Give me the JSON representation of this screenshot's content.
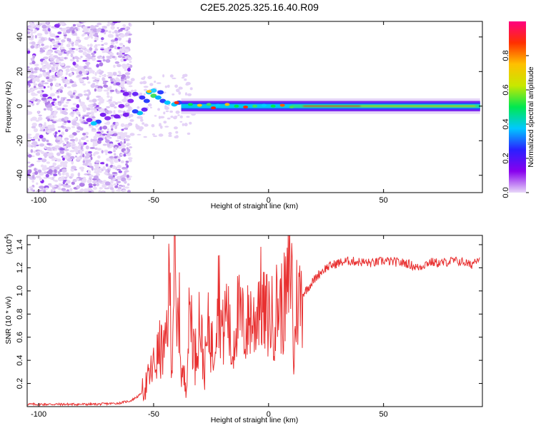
{
  "title": "C2E5.2025.325.16.40.R09",
  "chart_data": [
    {
      "type": "heatmap",
      "name": "spectrogram",
      "title": "C2E5.2025.325.16.40.R09",
      "xlabel": "Height of straight line (km)",
      "ylabel": "Frequency (Hz)",
      "xlim": [
        -105,
        93
      ],
      "ylim": [
        -50,
        49
      ],
      "xticks": [
        -100,
        -50,
        0,
        50
      ],
      "yticks": [
        -40,
        -20,
        0,
        20,
        40
      ],
      "colorbar": {
        "label": "Normalized spectral amplitude",
        "ticks": [
          "0.0",
          "0.2",
          "0.4",
          "0.6",
          "0.8"
        ],
        "range": [
          0,
          1
        ],
        "colors": [
          "#e8d8f8",
          "#8800ee",
          "#2a20ff",
          "#00c8ff",
          "#00e850",
          "#c8e800",
          "#ffc000",
          "#ff3000",
          "#ff0080"
        ]
      },
      "features": [
        {
          "region": "noise",
          "x_range": [
            -105,
            -60
          ],
          "freq_range": [
            -50,
            49
          ],
          "amplitude": "low"
        },
        {
          "region": "onset",
          "x_range": [
            -60,
            -38
          ],
          "freq_range": [
            -10,
            10
          ],
          "amplitude": "medium"
        },
        {
          "region": "signal band",
          "x_range": [
            -38,
            92
          ],
          "freq_center": 0,
          "freq_halfwidth": 3,
          "amplitude": "high"
        }
      ]
    },
    {
      "type": "line",
      "name": "snr",
      "xlabel": "Height of straight line (km)",
      "ylabel": "SNR (10 * v/v)",
      "yunit_label": "(x10",
      "yunit_exp": "4",
      "ylabel_exponent": "x10^4",
      "xlim": [
        -105,
        93
      ],
      "ylim": [
        0,
        1.48
      ],
      "xticks": [
        -100,
        -50,
        0,
        50
      ],
      "yticks": [
        "0.2",
        "0.4",
        "0.6",
        "0.8",
        "1.0",
        "1.2",
        "1.4"
      ],
      "series": [
        {
          "name": "SNR",
          "color": "#e83030",
          "x": [
            -105,
            -90,
            -75,
            -65,
            -60,
            -56,
            -53,
            -51,
            -49,
            -47,
            -45,
            -43,
            -42,
            -41,
            -40,
            -39,
            -38,
            -36,
            -34,
            -32,
            -30,
            -28,
            -26,
            -24,
            -22,
            -20,
            -18,
            -16,
            -14,
            -12,
            -10,
            -8,
            -6,
            -4,
            -2,
            0,
            2,
            4,
            6,
            8,
            10,
            11,
            12,
            14,
            16,
            18,
            20,
            22,
            25,
            30,
            35,
            40,
            45,
            50,
            55,
            60,
            65,
            70,
            75,
            80,
            85,
            88,
            90,
            92
          ],
          "y": [
            0.02,
            0.02,
            0.02,
            0.03,
            0.05,
            0.1,
            0.2,
            0.3,
            0.4,
            0.5,
            0.45,
            1.1,
            0.3,
            1.4,
            0.5,
            0.9,
            0.3,
            0.2,
            0.9,
            0.4,
            0.8,
            0.3,
            0.7,
            0.45,
            1.1,
            0.6,
            0.9,
            0.4,
            0.8,
            0.75,
            0.65,
            0.8,
            0.7,
            1.0,
            0.78,
            0.8,
            0.75,
            0.9,
            0.85,
            0.95,
            1.3,
            0.3,
            0.9,
            0.95,
            1.0,
            1.05,
            1.1,
            1.15,
            1.2,
            1.24,
            1.26,
            1.25,
            1.24,
            1.26,
            1.25,
            1.24,
            1.2,
            1.25,
            1.24,
            1.26,
            1.25,
            1.22,
            1.27,
            1.3
          ]
        }
      ]
    }
  ]
}
